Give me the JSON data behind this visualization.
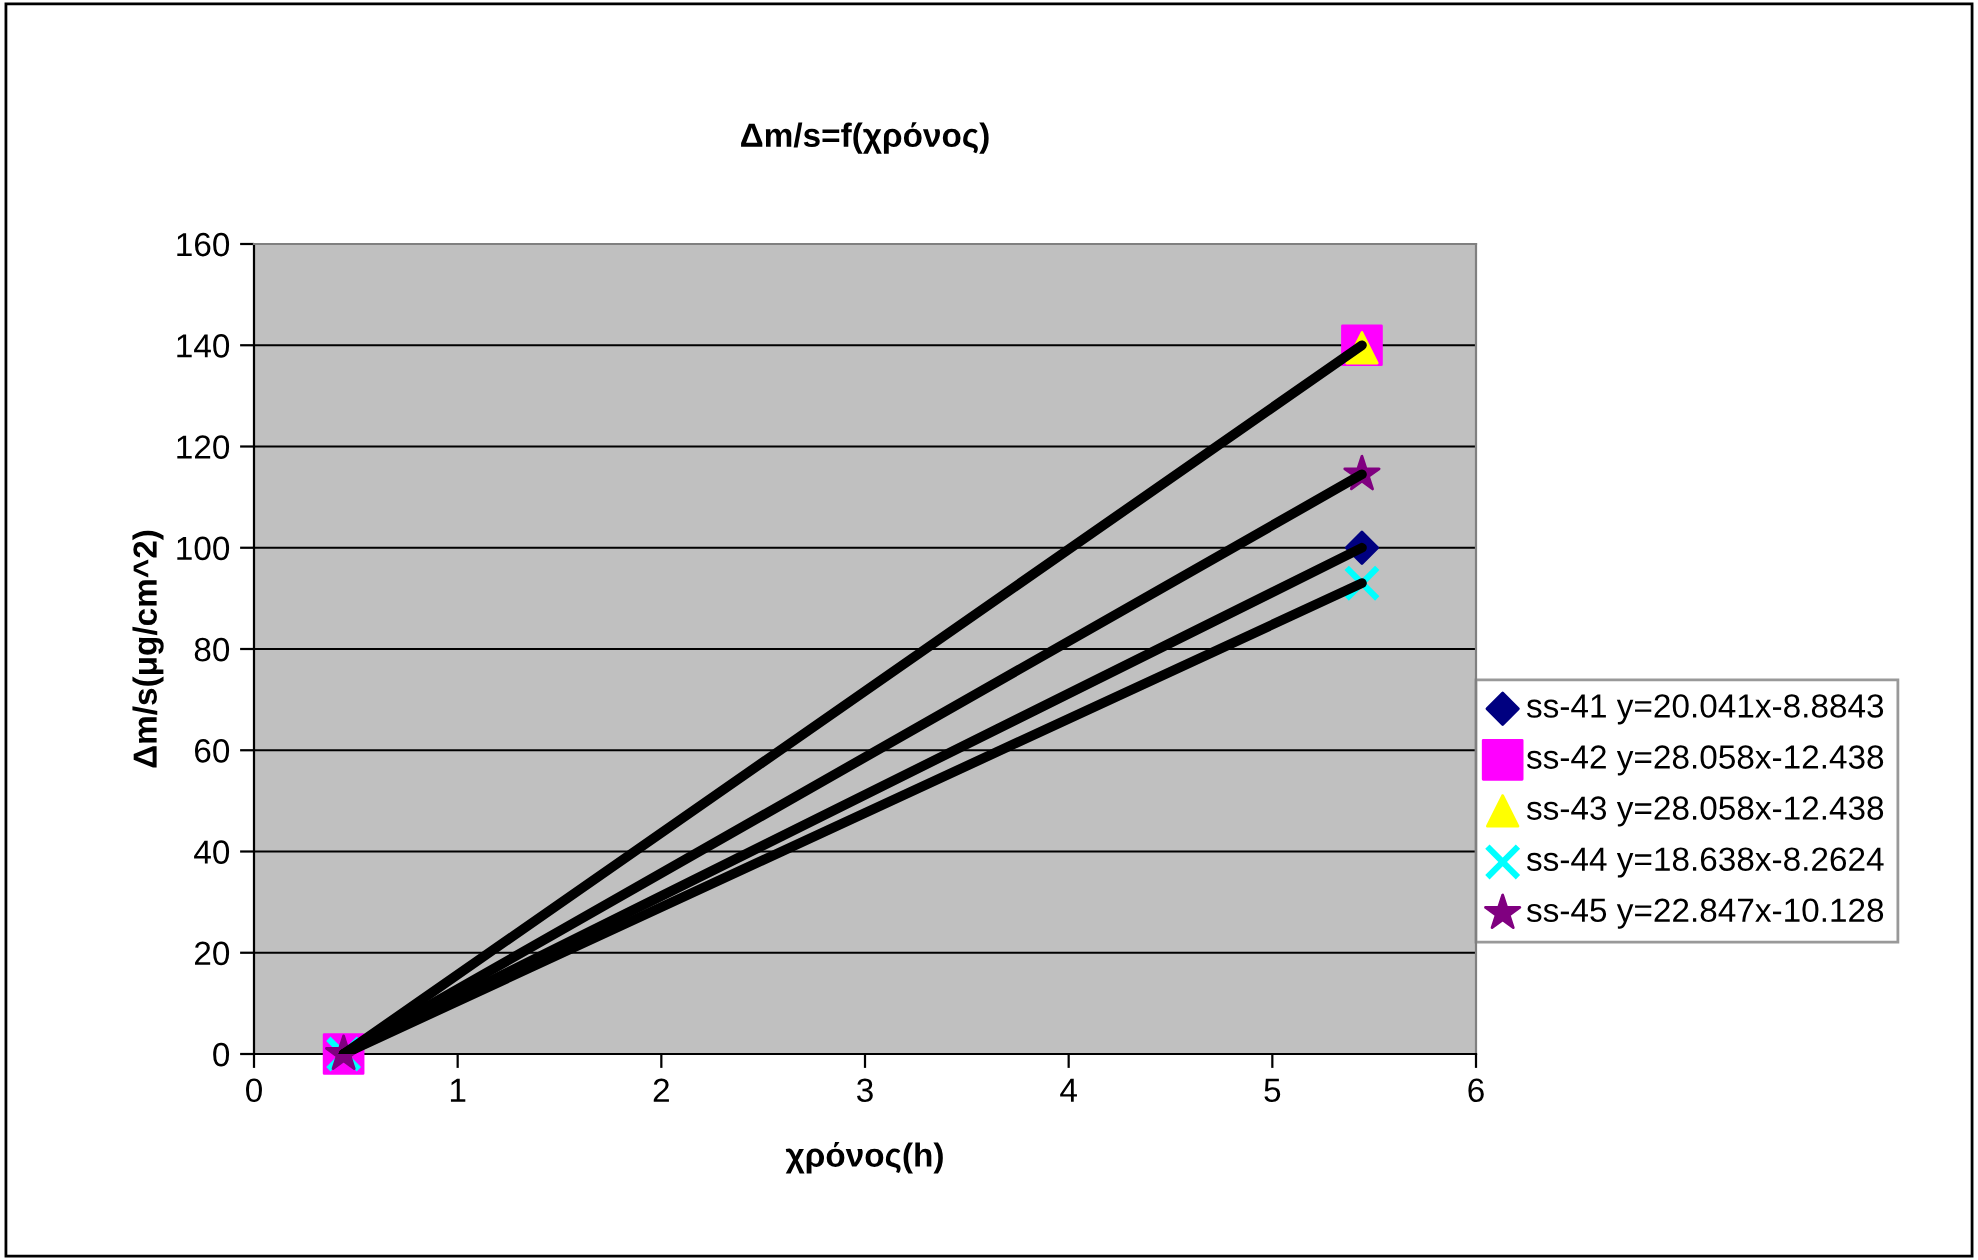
{
  "chart_data": {
    "type": "scatter",
    "title": "Δm/s=f(χρόνος)",
    "xlabel": "χρόνος(h)",
    "ylabel": "Δm/s(μg/cm^2)",
    "xlim": [
      0,
      6
    ],
    "xticks": [
      0,
      1,
      2,
      3,
      4,
      5,
      6
    ],
    "ylim": [
      0,
      160
    ],
    "yticks": [
      0,
      20,
      40,
      60,
      80,
      100,
      120,
      140,
      160
    ],
    "grid": "y",
    "legend": "right",
    "x": [
      0.44,
      5.44
    ],
    "series": [
      {
        "name": "ss-41 y=20.041x-8.8843",
        "color": "#000080",
        "marker": "diamond",
        "values": [
          null,
          100
        ]
      },
      {
        "name": "ss-42 y=28.058x-12.438",
        "color": "#ff00ff",
        "marker": "square",
        "values": [
          0,
          140
        ]
      },
      {
        "name": "ss-43 y=28.058x-12.438",
        "color": "#ffff00",
        "marker": "triangle",
        "values": [
          null,
          139.5
        ]
      },
      {
        "name": "ss-44 y=18.638x-8.2624",
        "color": "#00ffff",
        "marker": "cross",
        "values": [
          0,
          93
        ]
      },
      {
        "name": "ss-45 y=22.847x-10.128",
        "color": "#800080",
        "marker": "star",
        "values": [
          0,
          114.5
        ]
      },
      {
        "type": "line",
        "color": "#000000",
        "marker": "none",
        "line_style": "solid",
        "values": [
          0,
          100
        ]
      },
      {
        "type": "line",
        "color": "#000000",
        "marker": "none",
        "line_style": "solid",
        "values": [
          0,
          140
        ]
      },
      {
        "type": "line",
        "color": "#000000",
        "marker": "none",
        "line_style": "solid",
        "values": [
          0,
          93
        ]
      },
      {
        "type": "line",
        "color": "#000000",
        "marker": "none",
        "line_style": "solid",
        "values": [
          0,
          114.5
        ]
      }
    ]
  }
}
